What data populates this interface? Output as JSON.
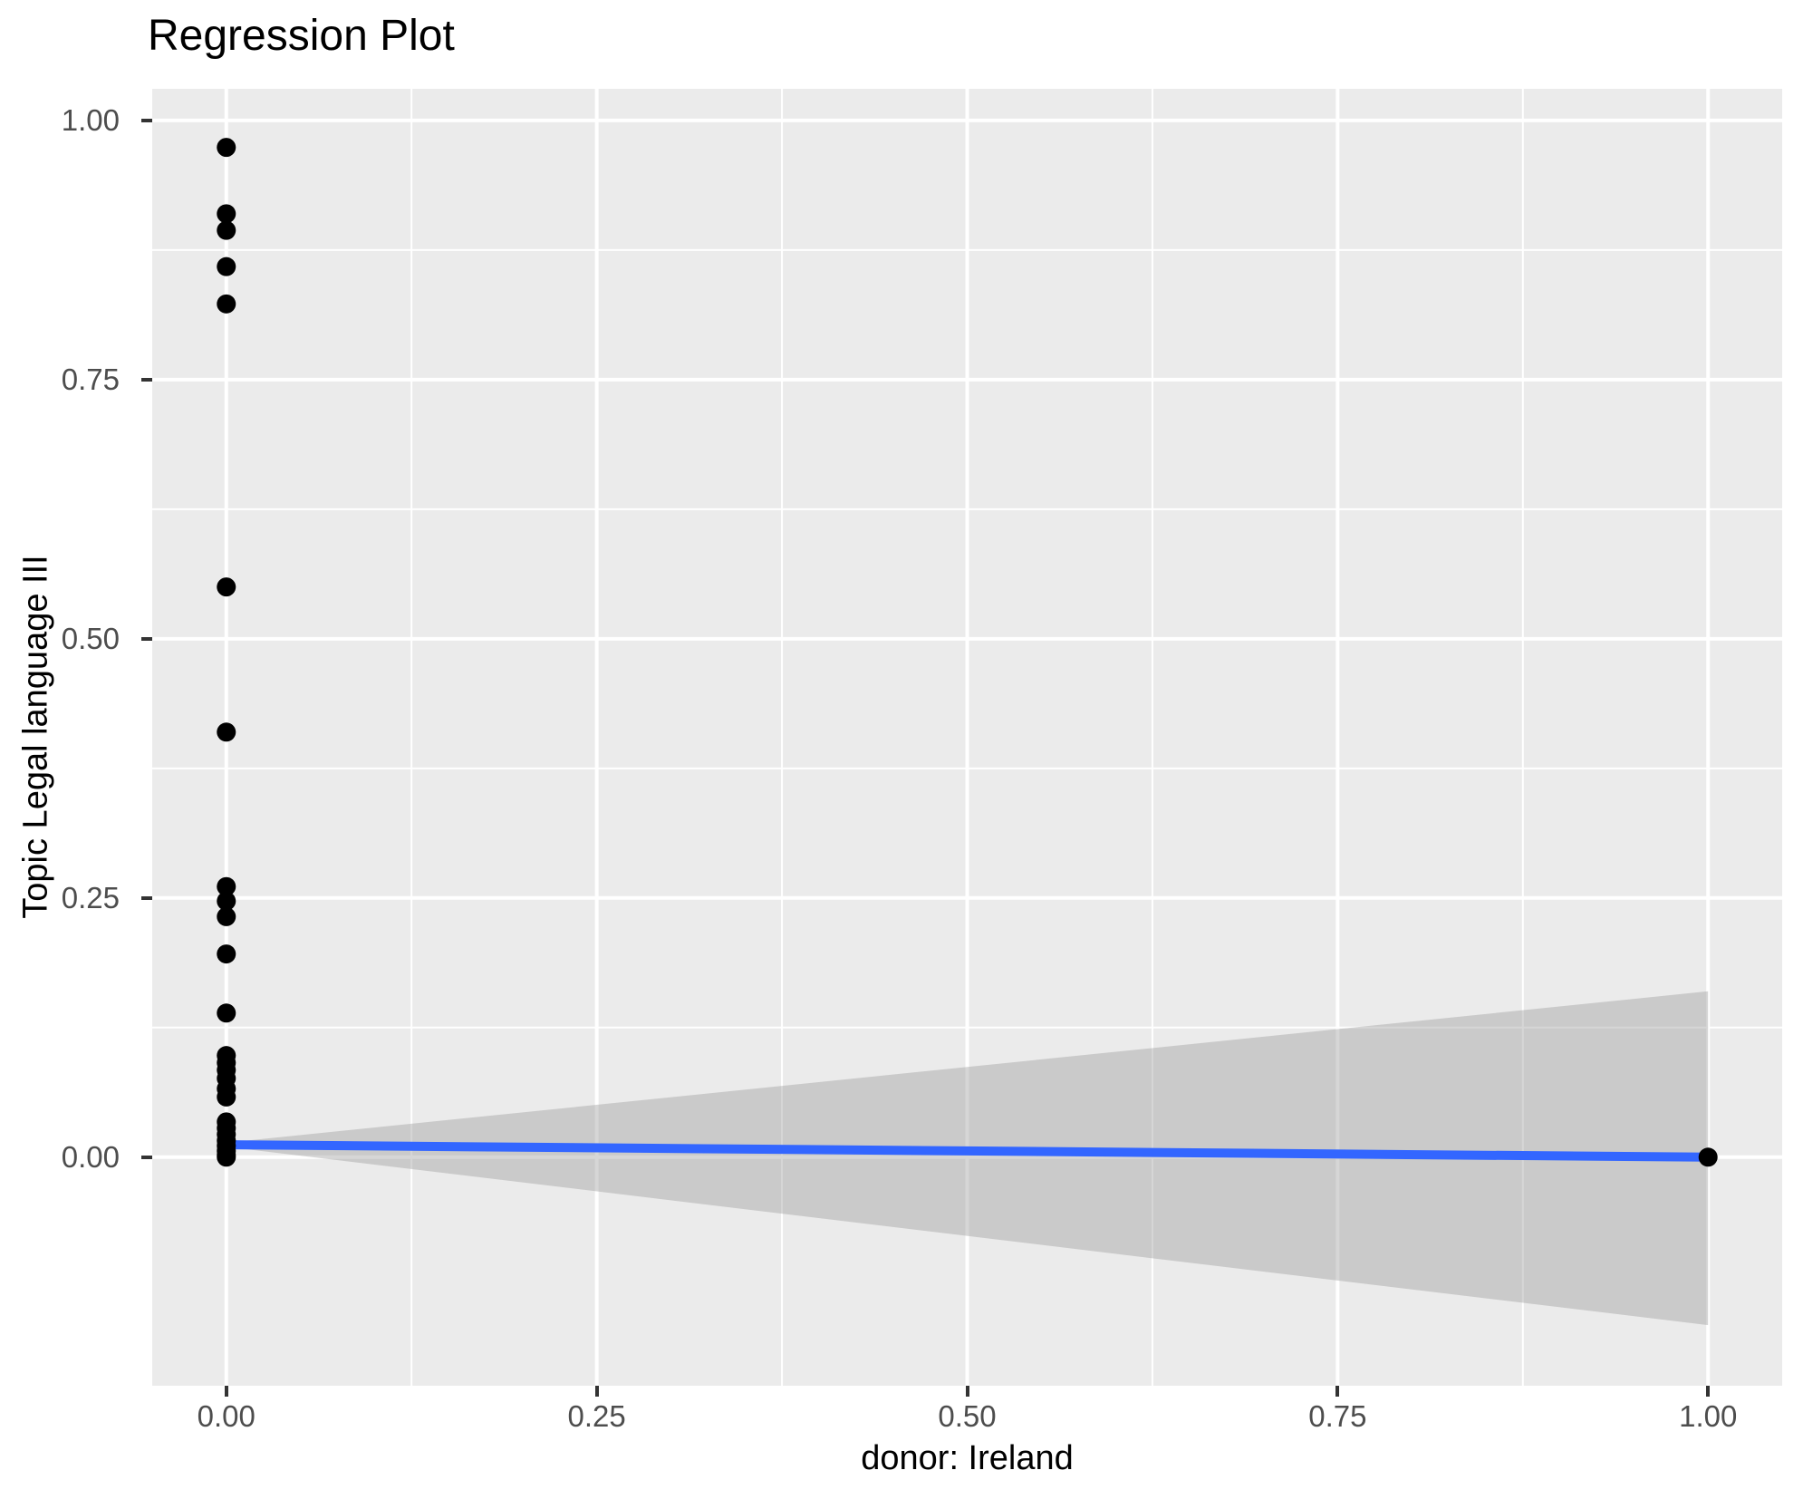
{
  "chart_data": {
    "type": "scatter",
    "title": "Regression Plot",
    "xlabel": "donor: Ireland",
    "ylabel": "Topic Legal language III",
    "xlim": [
      -0.05,
      1.05
    ],
    "ylim": [
      -0.2205,
      1.0305
    ],
    "x_ticks": {
      "values": [
        0.0,
        0.25,
        0.5,
        0.75,
        1.0
      ],
      "labels": [
        "0.00",
        "0.25",
        "0.50",
        "0.75",
        "1.00"
      ]
    },
    "y_ticks": {
      "values": [
        0.0,
        0.25,
        0.5,
        0.75,
        1.0
      ],
      "labels": [
        "0.00",
        "0.25",
        "0.50",
        "0.75",
        "1.00"
      ]
    },
    "x_minor_ticks": [
      0.125,
      0.375,
      0.625,
      0.875
    ],
    "y_minor_ticks": [
      0.125,
      0.375,
      0.625,
      0.875
    ],
    "grid": "major and minor white gridlines on gray panel",
    "legend": "none",
    "series": [
      {
        "name": "observations",
        "type": "scatter",
        "color": "#000000",
        "point_radius": 10.5,
        "points": [
          [
            0,
            0.974
          ],
          [
            0,
            0.91
          ],
          [
            0,
            0.894
          ],
          [
            0,
            0.859
          ],
          [
            0,
            0.823
          ],
          [
            0,
            0.55
          ],
          [
            0,
            0.41
          ],
          [
            0,
            0.261
          ],
          [
            0,
            0.247
          ],
          [
            0,
            0.232
          ],
          [
            0,
            0.196
          ],
          [
            0,
            0.139
          ],
          [
            0,
            0.098
          ],
          [
            0,
            0.091
          ],
          [
            0,
            0.084
          ],
          [
            0,
            0.076
          ],
          [
            0,
            0.066
          ],
          [
            0,
            0.058
          ],
          [
            0,
            0.034
          ],
          [
            0,
            0.028
          ],
          [
            0,
            0.022
          ],
          [
            0,
            0.016
          ],
          [
            0,
            0.011
          ],
          [
            0,
            0.006
          ],
          [
            0,
            0.002
          ],
          [
            0,
            0.0
          ],
          [
            1,
            0.0
          ]
        ]
      },
      {
        "name": "regression-line",
        "type": "line",
        "color": "#3366FF",
        "stroke_width": 10,
        "x": [
          0,
          1
        ],
        "y": [
          0.012,
          0.0
        ]
      },
      {
        "name": "confidence-band",
        "type": "area",
        "color": "#999999",
        "opacity": 0.4,
        "x": [
          0,
          1
        ],
        "upper": [
          0.014,
          0.16
        ],
        "lower": [
          0.01,
          -0.162
        ]
      }
    ],
    "colors": {
      "panel_bg": "#EBEBEB",
      "grid": "#FFFFFF",
      "tick_text": "#4D4D4D",
      "tick_mark": "#333333",
      "title_text": "#000000"
    }
  }
}
